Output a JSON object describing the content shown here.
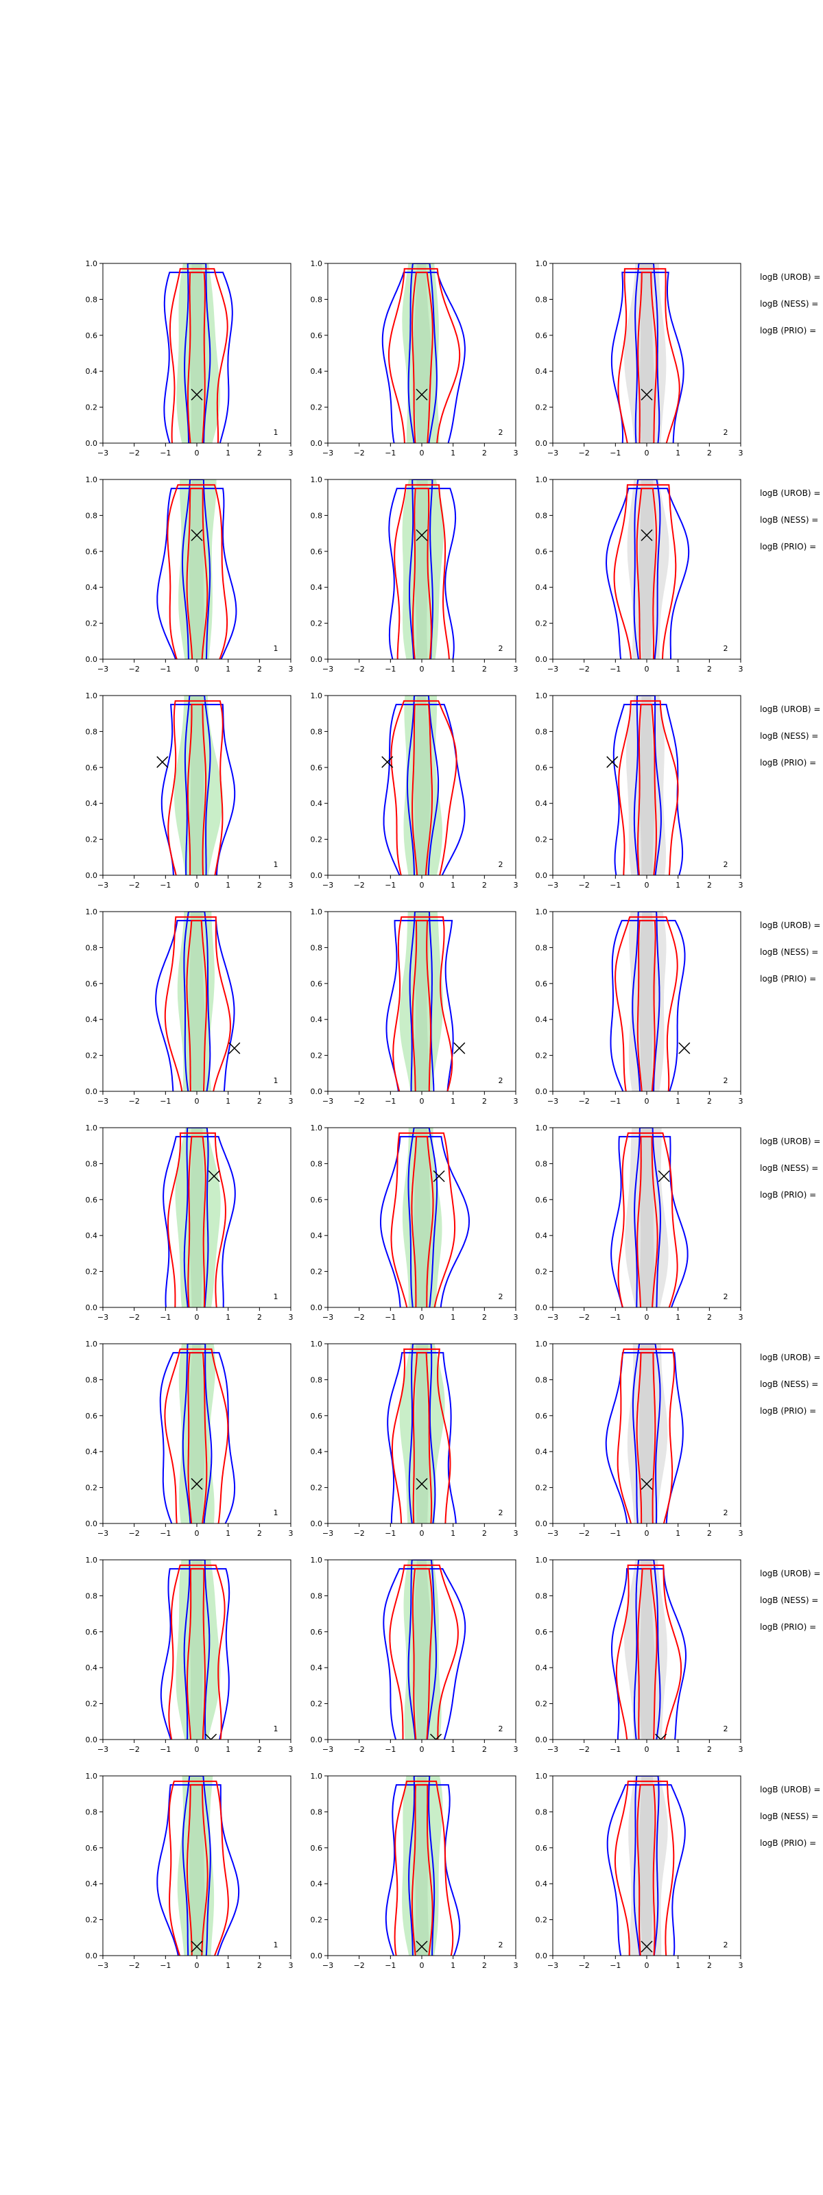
{
  "figure": {
    "side_labels": [
      "logB (UROB) =",
      "logB (NESS) =",
      "logB (PRIO) ="
    ]
  },
  "chart_data": [
    {
      "type": "contour",
      "row": 1,
      "col": 1,
      "panel_label": "1",
      "xlim": [
        -3,
        3
      ],
      "ylim": [
        0,
        1
      ],
      "xticks": [
        "−3",
        "−2",
        "−1",
        "0",
        "1",
        "2",
        "3"
      ],
      "yticks": [
        "0.0",
        "0.2",
        "0.4",
        "0.6",
        "0.8",
        "1.0"
      ],
      "marker": {
        "x": 0,
        "y": 0.27
      },
      "fill": "#c9eec8"
    },
    {
      "type": "contour",
      "row": 1,
      "col": 2,
      "panel_label": "2",
      "xlim": [
        -3,
        3
      ],
      "ylim": [
        0,
        1
      ],
      "xticks": [
        "−3",
        "−2",
        "−1",
        "0",
        "1",
        "2",
        "3"
      ],
      "yticks": [
        "0.0",
        "0.2",
        "0.4",
        "0.6",
        "0.8",
        "1.0"
      ],
      "marker": {
        "x": 0,
        "y": 0.27
      },
      "fill": "#c9eec8"
    },
    {
      "type": "contour",
      "row": 1,
      "col": 3,
      "panel_label": "2",
      "xlim": [
        -3,
        3
      ],
      "ylim": [
        0,
        1
      ],
      "xticks": [
        "−3",
        "−2",
        "−1",
        "0",
        "1",
        "2",
        "3"
      ],
      "yticks": [
        "0.0",
        "0.2",
        "0.4",
        "0.6",
        "0.8",
        "1.0"
      ],
      "marker": {
        "x": 0,
        "y": 0.27
      },
      "fill": "#e6e6e6"
    },
    {
      "type": "contour",
      "row": 2,
      "col": 1,
      "panel_label": "1",
      "xlim": [
        -3,
        3
      ],
      "ylim": [
        0,
        1
      ],
      "xticks": [
        "−3",
        "−2",
        "−1",
        "0",
        "1",
        "2",
        "3"
      ],
      "yticks": [
        "0.0",
        "0.2",
        "0.4",
        "0.6",
        "0.8",
        "1.0"
      ],
      "marker": {
        "x": 0,
        "y": 0.69
      },
      "fill": "#c9eec8"
    },
    {
      "type": "contour",
      "row": 2,
      "col": 2,
      "panel_label": "2",
      "xlim": [
        -3,
        3
      ],
      "ylim": [
        0,
        1
      ],
      "xticks": [
        "−3",
        "−2",
        "−1",
        "0",
        "1",
        "2",
        "3"
      ],
      "yticks": [
        "0.0",
        "0.2",
        "0.4",
        "0.6",
        "0.8",
        "1.0"
      ],
      "marker": {
        "x": 0,
        "y": 0.69
      },
      "fill": "#c9eec8"
    },
    {
      "type": "contour",
      "row": 2,
      "col": 3,
      "panel_label": "2",
      "xlim": [
        -3,
        3
      ],
      "ylim": [
        0,
        1
      ],
      "xticks": [
        "−3",
        "−2",
        "−1",
        "0",
        "1",
        "2",
        "3"
      ],
      "yticks": [
        "0.0",
        "0.2",
        "0.4",
        "0.6",
        "0.8",
        "1.0"
      ],
      "marker": {
        "x": 0,
        "y": 0.69
      },
      "fill": "#e6e6e6"
    },
    {
      "type": "contour",
      "row": 3,
      "col": 1,
      "panel_label": "1",
      "xlim": [
        -3,
        3
      ],
      "ylim": [
        0,
        1
      ],
      "xticks": [
        "−3",
        "−2",
        "−1",
        "0",
        "1",
        "2",
        "3"
      ],
      "yticks": [
        "0.0",
        "0.2",
        "0.4",
        "0.6",
        "0.8",
        "1.0"
      ],
      "marker": {
        "x": -1.1,
        "y": 0.63
      },
      "fill": "#c9eec8"
    },
    {
      "type": "contour",
      "row": 3,
      "col": 2,
      "panel_label": "2",
      "xlim": [
        -3,
        3
      ],
      "ylim": [
        0,
        1
      ],
      "xticks": [
        "−3",
        "−2",
        "−1",
        "0",
        "1",
        "2",
        "3"
      ],
      "yticks": [
        "0.0",
        "0.2",
        "0.4",
        "0.6",
        "0.8",
        "1.0"
      ],
      "marker": {
        "x": -1.1,
        "y": 0.63
      },
      "fill": "#c9eec8"
    },
    {
      "type": "contour",
      "row": 3,
      "col": 3,
      "panel_label": "2",
      "xlim": [
        -3,
        3
      ],
      "ylim": [
        0,
        1
      ],
      "xticks": [
        "−3",
        "−2",
        "−1",
        "0",
        "1",
        "2",
        "3"
      ],
      "yticks": [
        "0.0",
        "0.2",
        "0.4",
        "0.6",
        "0.8",
        "1.0"
      ],
      "marker": {
        "x": -1.1,
        "y": 0.63
      },
      "fill": "#e6e6e6"
    },
    {
      "type": "contour",
      "row": 4,
      "col": 1,
      "panel_label": "1",
      "xlim": [
        -3,
        3
      ],
      "ylim": [
        0,
        1
      ],
      "xticks": [
        "−3",
        "−2",
        "−1",
        "0",
        "1",
        "2",
        "3"
      ],
      "yticks": [
        "0.0",
        "0.2",
        "0.4",
        "0.6",
        "0.8",
        "1.0"
      ],
      "marker": {
        "x": 1.2,
        "y": 0.24
      },
      "fill": "#c9eec8"
    },
    {
      "type": "contour",
      "row": 4,
      "col": 2,
      "panel_label": "2",
      "xlim": [
        -3,
        3
      ],
      "ylim": [
        0,
        1
      ],
      "xticks": [
        "−3",
        "−2",
        "−1",
        "0",
        "1",
        "2",
        "3"
      ],
      "yticks": [
        "0.0",
        "0.2",
        "0.4",
        "0.6",
        "0.8",
        "1.0"
      ],
      "marker": {
        "x": 1.2,
        "y": 0.24
      },
      "fill": "#c9eec8"
    },
    {
      "type": "contour",
      "row": 4,
      "col": 3,
      "panel_label": "2",
      "xlim": [
        -3,
        3
      ],
      "ylim": [
        0,
        1
      ],
      "xticks": [
        "−3",
        "−2",
        "−1",
        "0",
        "1",
        "2",
        "3"
      ],
      "yticks": [
        "0.0",
        "0.2",
        "0.4",
        "0.6",
        "0.8",
        "1.0"
      ],
      "marker": {
        "x": 1.2,
        "y": 0.24
      },
      "fill": "#e6e6e6"
    },
    {
      "type": "contour",
      "row": 5,
      "col": 1,
      "panel_label": "1",
      "xlim": [
        -3,
        3
      ],
      "ylim": [
        0,
        1
      ],
      "xticks": [
        "−3",
        "−2",
        "−1",
        "0",
        "1",
        "2",
        "3"
      ],
      "yticks": [
        "0.0",
        "0.2",
        "0.4",
        "0.6",
        "0.8",
        "1.0"
      ],
      "marker": {
        "x": 0.55,
        "y": 0.73
      },
      "fill": "#c9eec8"
    },
    {
      "type": "contour",
      "row": 5,
      "col": 2,
      "panel_label": "2",
      "xlim": [
        -3,
        3
      ],
      "ylim": [
        0,
        1
      ],
      "xticks": [
        "−3",
        "−2",
        "−1",
        "0",
        "1",
        "2",
        "3"
      ],
      "yticks": [
        "0.0",
        "0.2",
        "0.4",
        "0.6",
        "0.8",
        "1.0"
      ],
      "marker": {
        "x": 0.55,
        "y": 0.73
      },
      "fill": "#c9eec8"
    },
    {
      "type": "contour",
      "row": 5,
      "col": 3,
      "panel_label": "2",
      "xlim": [
        -3,
        3
      ],
      "ylim": [
        0,
        1
      ],
      "xticks": [
        "−3",
        "−2",
        "−1",
        "0",
        "1",
        "2",
        "3"
      ],
      "yticks": [
        "0.0",
        "0.2",
        "0.4",
        "0.6",
        "0.8",
        "1.0"
      ],
      "marker": {
        "x": 0.55,
        "y": 0.73
      },
      "fill": "#e6e6e6"
    },
    {
      "type": "contour",
      "row": 6,
      "col": 1,
      "panel_label": "1",
      "xlim": [
        -3,
        3
      ],
      "ylim": [
        0,
        1
      ],
      "xticks": [
        "−3",
        "−2",
        "−1",
        "0",
        "1",
        "2",
        "3"
      ],
      "yticks": [
        "0.0",
        "0.2",
        "0.4",
        "0.6",
        "0.8",
        "1.0"
      ],
      "marker": {
        "x": 0,
        "y": 0.22
      },
      "fill": "#c9eec8"
    },
    {
      "type": "contour",
      "row": 6,
      "col": 2,
      "panel_label": "2",
      "xlim": [
        -3,
        3
      ],
      "ylim": [
        0,
        1
      ],
      "xticks": [
        "−3",
        "−2",
        "−1",
        "0",
        "1",
        "2",
        "3"
      ],
      "yticks": [
        "0.0",
        "0.2",
        "0.4",
        "0.6",
        "0.8",
        "1.0"
      ],
      "marker": {
        "x": 0,
        "y": 0.22
      },
      "fill": "#c9eec8"
    },
    {
      "type": "contour",
      "row": 6,
      "col": 3,
      "panel_label": "2",
      "xlim": [
        -3,
        3
      ],
      "ylim": [
        0,
        1
      ],
      "xticks": [
        "−3",
        "−2",
        "−1",
        "0",
        "1",
        "2",
        "3"
      ],
      "yticks": [
        "0.0",
        "0.2",
        "0.4",
        "0.6",
        "0.8",
        "1.0"
      ],
      "marker": {
        "x": 0,
        "y": 0.22
      },
      "fill": "#e6e6e6"
    },
    {
      "type": "contour",
      "row": 7,
      "col": 1,
      "panel_label": "1",
      "xlim": [
        -3,
        3
      ],
      "ylim": [
        0,
        1
      ],
      "xticks": [
        "−3",
        "−2",
        "−1",
        "0",
        "1",
        "2",
        "3"
      ],
      "yticks": [
        "0.0",
        "0.2",
        "0.4",
        "0.6",
        "0.8",
        "1.0"
      ],
      "marker": {
        "x": 0.45,
        "y": 0.0
      },
      "fill": "#c9eec8"
    },
    {
      "type": "contour",
      "row": 7,
      "col": 2,
      "panel_label": "2",
      "xlim": [
        -3,
        3
      ],
      "ylim": [
        0,
        1
      ],
      "xticks": [
        "−3",
        "−2",
        "−1",
        "0",
        "1",
        "2",
        "3"
      ],
      "yticks": [
        "0.0",
        "0.2",
        "0.4",
        "0.6",
        "0.8",
        "1.0"
      ],
      "marker": {
        "x": 0.45,
        "y": 0.0
      },
      "fill": "#c9eec8"
    },
    {
      "type": "contour",
      "row": 7,
      "col": 3,
      "panel_label": "2",
      "xlim": [
        -3,
        3
      ],
      "ylim": [
        0,
        1
      ],
      "xticks": [
        "−3",
        "−2",
        "−1",
        "0",
        "1",
        "2",
        "3"
      ],
      "yticks": [
        "0.0",
        "0.2",
        "0.4",
        "0.6",
        "0.8",
        "1.0"
      ],
      "marker": {
        "x": 0.45,
        "y": 0.0
      },
      "fill": "#e6e6e6"
    },
    {
      "type": "contour",
      "row": 8,
      "col": 1,
      "panel_label": "1",
      "xlim": [
        -3,
        3
      ],
      "ylim": [
        0,
        1
      ],
      "xticks": [
        "−3",
        "−2",
        "−1",
        "0",
        "1",
        "2",
        "3"
      ],
      "yticks": [
        "0.0",
        "0.2",
        "0.4",
        "0.6",
        "0.8",
        "1.0"
      ],
      "marker": {
        "x": 0,
        "y": 0.05
      },
      "fill": "#c9eec8"
    },
    {
      "type": "contour",
      "row": 8,
      "col": 2,
      "panel_label": "2",
      "xlim": [
        -3,
        3
      ],
      "ylim": [
        0,
        1
      ],
      "xticks": [
        "−3",
        "−2",
        "−1",
        "0",
        "1",
        "2",
        "3"
      ],
      "yticks": [
        "0.0",
        "0.2",
        "0.4",
        "0.6",
        "0.8",
        "1.0"
      ],
      "marker": {
        "x": 0,
        "y": 0.05
      },
      "fill": "#c9eec8"
    },
    {
      "type": "contour",
      "row": 8,
      "col": 3,
      "panel_label": "2",
      "xlim": [
        -3,
        3
      ],
      "ylim": [
        0,
        1
      ],
      "xticks": [
        "−3",
        "−2",
        "−1",
        "0",
        "1",
        "2",
        "3"
      ],
      "yticks": [
        "0.0",
        "0.2",
        "0.4",
        "0.6",
        "0.8",
        "1.0"
      ],
      "marker": {
        "x": 0,
        "y": 0.05
      },
      "fill": "#e6e6e6"
    }
  ]
}
